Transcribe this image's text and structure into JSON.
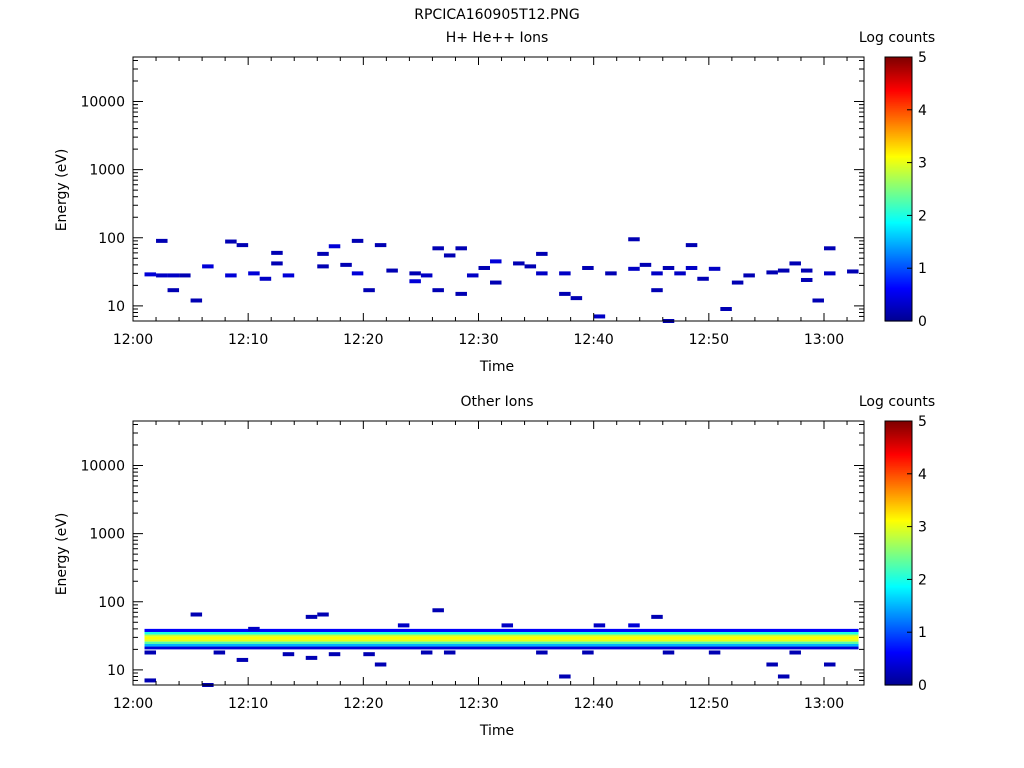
{
  "figure_title": "RPCICA160905T12.PNG",
  "colorscale": [
    "#00008f",
    "#0000ff",
    "#007fff",
    "#00ffff",
    "#7fff7f",
    "#ffff00",
    "#ff7f00",
    "#ff0000",
    "#7f0000"
  ],
  "chart_data": [
    {
      "type": "heatmap",
      "title": "H+ He++ Ions",
      "xlabel": "Time",
      "ylabel": "Energy (eV)",
      "x_range": [
        "12:00",
        "13:03"
      ],
      "x_ticks": [
        "12:00",
        "12:10",
        "12:20",
        "12:30",
        "12:40",
        "12:50",
        "13:00"
      ],
      "y_scale": "log",
      "y_range": [
        6,
        45000
      ],
      "y_ticks": [
        "10",
        "100",
        "1000",
        "10000"
      ],
      "colorbar": {
        "label": "Log counts",
        "range": [
          0,
          5
        ],
        "ticks": [
          "0",
          "1",
          "2",
          "3",
          "4",
          "5"
        ]
      },
      "cells": [
        [
          "12:01",
          29,
          0.4
        ],
        [
          "12:02",
          28,
          0.3
        ],
        [
          "12:03",
          28,
          0.3
        ],
        [
          "12:04",
          28,
          0.2
        ],
        [
          "12:02",
          90,
          0.2
        ],
        [
          "12:03",
          17,
          0.2
        ],
        [
          "12:05",
          12,
          0.2
        ],
        [
          "12:06",
          38,
          0.4
        ],
        [
          "12:08",
          28,
          0.4
        ],
        [
          "12:08",
          88,
          0.2
        ],
        [
          "12:09",
          78,
          0.2
        ],
        [
          "12:10",
          30,
          0.4
        ],
        [
          "12:11",
          25,
          0.3
        ],
        [
          "12:12",
          60,
          0.2
        ],
        [
          "12:12",
          42,
          0.2
        ],
        [
          "12:13",
          28,
          0.4
        ],
        [
          "12:16",
          58,
          0.2
        ],
        [
          "12:16",
          38,
          0.2
        ],
        [
          "12:17",
          75,
          0.4
        ],
        [
          "12:18",
          40,
          0.2
        ],
        [
          "12:19",
          90,
          0.2
        ],
        [
          "12:19",
          30,
          0.4
        ],
        [
          "12:20",
          17,
          0.2
        ],
        [
          "12:21",
          78,
          0.2
        ],
        [
          "12:22",
          33,
          0.2
        ],
        [
          "12:24",
          30,
          0.2
        ],
        [
          "12:24",
          23,
          0.4
        ],
        [
          "12:25",
          28,
          0.3
        ],
        [
          "12:26",
          70,
          0.2
        ],
        [
          "12:26",
          17,
          0.2
        ],
        [
          "12:27",
          55,
          0.2
        ],
        [
          "12:28",
          70,
          0.2
        ],
        [
          "12:28",
          15,
          0.2
        ],
        [
          "12:29",
          28,
          0.3
        ],
        [
          "12:30",
          36,
          0.2
        ],
        [
          "12:31",
          22,
          0.2
        ],
        [
          "12:31",
          45,
          0.4
        ],
        [
          "12:33",
          42,
          0.2
        ],
        [
          "12:34",
          38,
          0.2
        ],
        [
          "12:35",
          30,
          0.3
        ],
        [
          "12:35",
          58,
          0.2
        ],
        [
          "12:37",
          30,
          0.3
        ],
        [
          "12:37",
          15,
          0.2
        ],
        [
          "12:38",
          13,
          0.2
        ],
        [
          "12:39",
          36,
          0.2
        ],
        [
          "12:40",
          7,
          0.3
        ],
        [
          "12:41",
          30,
          0.2
        ],
        [
          "12:43",
          35,
          0.3
        ],
        [
          "12:43",
          95,
          0.2
        ],
        [
          "12:44",
          40,
          0.2
        ],
        [
          "12:45",
          30,
          0.3
        ],
        [
          "12:45",
          17,
          0.2
        ],
        [
          "12:46",
          6,
          0.2
        ],
        [
          "12:46",
          36,
          0.2
        ],
        [
          "12:47",
          30,
          0.3
        ],
        [
          "12:48",
          78,
          0.2
        ],
        [
          "12:48",
          36,
          0.3
        ],
        [
          "12:49",
          25,
          0.2
        ],
        [
          "12:50",
          35,
          0.3
        ],
        [
          "12:51",
          9,
          0.2
        ],
        [
          "12:52",
          22,
          0.2
        ],
        [
          "12:53",
          28,
          0.2
        ],
        [
          "12:55",
          31,
          0.2
        ],
        [
          "12:56",
          33,
          0.2
        ],
        [
          "12:57",
          42,
          0.2
        ],
        [
          "12:58",
          33,
          0.2
        ],
        [
          "12:58",
          24,
          0.2
        ],
        [
          "12:59",
          12,
          0.2
        ],
        [
          "13:00",
          70,
          0.2
        ],
        [
          "13:00",
          30,
          0.3
        ],
        [
          "13:02",
          32,
          0.2
        ]
      ]
    },
    {
      "type": "heatmap",
      "title": "Other Ions",
      "xlabel": "Time",
      "ylabel": "Energy (eV)",
      "x_range": [
        "12:00",
        "13:03"
      ],
      "x_ticks": [
        "12:00",
        "12:10",
        "12:20",
        "12:30",
        "12:40",
        "12:50",
        "13:00"
      ],
      "y_scale": "log",
      "y_range": [
        6,
        45000
      ],
      "y_ticks": [
        "10",
        "100",
        "1000",
        "10000"
      ],
      "colorbar": {
        "label": "Log counts",
        "range": [
          0,
          5
        ],
        "ticks": [
          "0",
          "1",
          "2",
          "3",
          "4",
          "5"
        ]
      },
      "band": {
        "t_start": "12:01",
        "t_end": "13:02",
        "levels": [
          [
            40,
            36,
            0.6
          ],
          [
            36,
            33,
            2.0
          ],
          [
            33,
            31,
            2.8
          ],
          [
            31,
            28,
            3.1
          ],
          [
            28,
            26,
            3.0
          ],
          [
            26,
            24,
            2.3
          ],
          [
            24,
            22,
            1.5
          ],
          [
            22,
            20,
            0.4
          ]
        ]
      },
      "cells": [
        [
          "12:01",
          7,
          0.2
        ],
        [
          "12:01",
          18,
          0.2
        ],
        [
          "12:05",
          65,
          0.2
        ],
        [
          "12:06",
          6,
          0.2
        ],
        [
          "12:07",
          18,
          0.2
        ],
        [
          "12:09",
          14,
          0.2
        ],
        [
          "12:10",
          40,
          0.3
        ],
        [
          "12:13",
          17,
          0.2
        ],
        [
          "12:15",
          15,
          0.2
        ],
        [
          "12:15",
          60,
          0.2
        ],
        [
          "12:16",
          65,
          0.2
        ],
        [
          "12:17",
          17,
          0.2
        ],
        [
          "12:20",
          17,
          0.2
        ],
        [
          "12:21",
          12,
          0.2
        ],
        [
          "12:23",
          45,
          0.3
        ],
        [
          "12:25",
          18,
          0.2
        ],
        [
          "12:26",
          75,
          0.2
        ],
        [
          "12:27",
          18,
          0.2
        ],
        [
          "12:32",
          45,
          0.3
        ],
        [
          "12:35",
          18,
          0.2
        ],
        [
          "12:37",
          8,
          0.2
        ],
        [
          "12:39",
          18,
          0.2
        ],
        [
          "12:40",
          45,
          0.3
        ],
        [
          "12:43",
          45,
          0.4
        ],
        [
          "12:45",
          60,
          0.2
        ],
        [
          "12:46",
          18,
          0.2
        ],
        [
          "12:50",
          18,
          0.2
        ],
        [
          "12:55",
          12,
          0.2
        ],
        [
          "12:56",
          8,
          0.2
        ],
        [
          "12:57",
          18,
          0.2
        ],
        [
          "13:00",
          12,
          0.2
        ]
      ]
    }
  ]
}
